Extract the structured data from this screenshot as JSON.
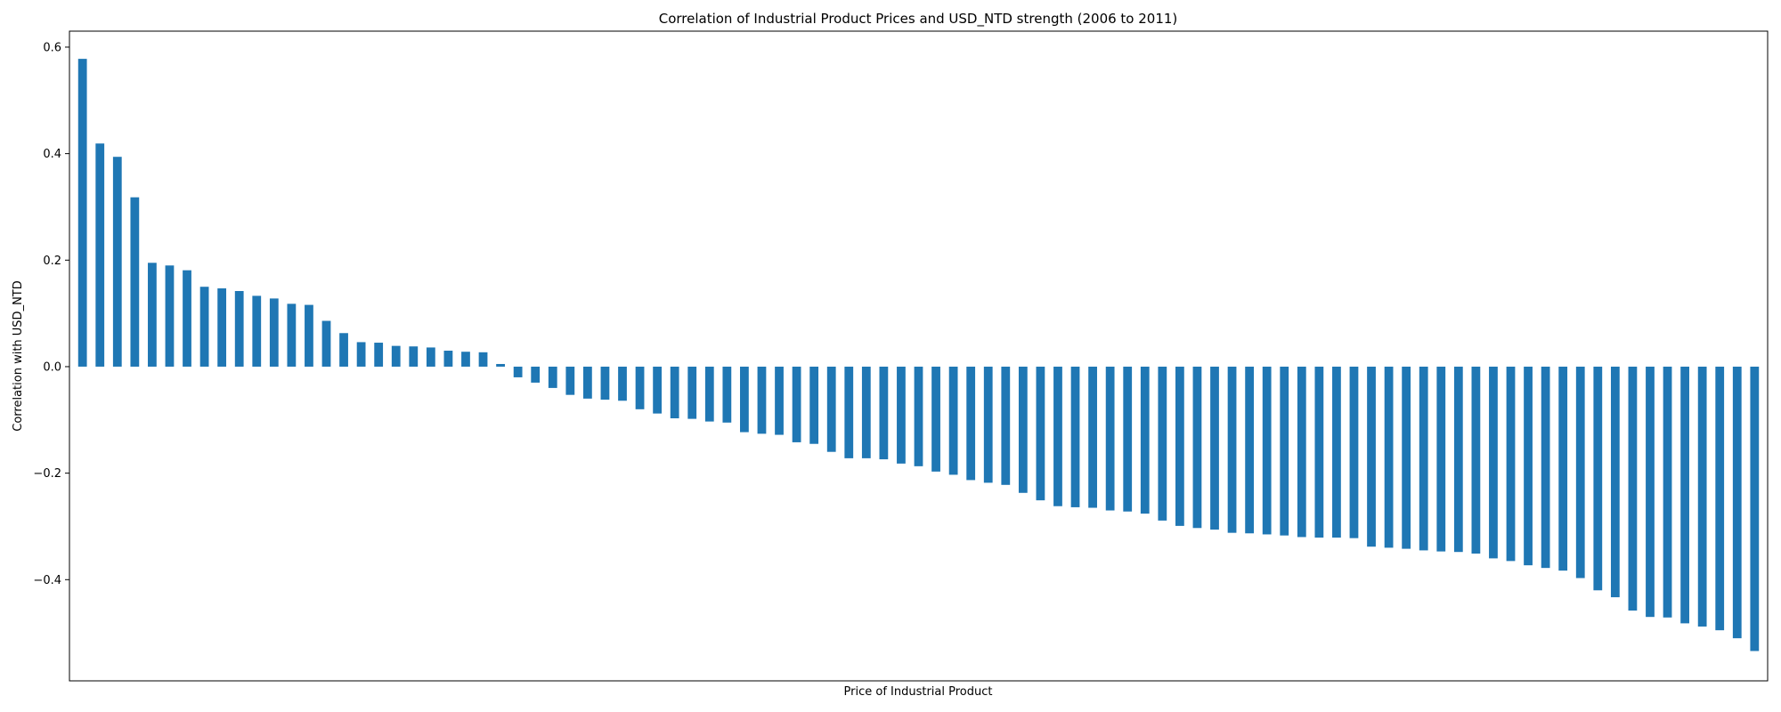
{
  "chart_data": {
    "type": "bar",
    "title": "Correlation of Industrial Product Prices and USD_NTD strength (2006 to 2011)",
    "xlabel": "Price of Industrial Product",
    "ylabel": "Correlation with USD_NTD",
    "ylim": [
      -0.59,
      0.63
    ],
    "yticks": [
      {
        "value": 0.6,
        "label": "0.6"
      },
      {
        "value": 0.4,
        "label": "0.4"
      },
      {
        "value": 0.2,
        "label": "0.2"
      },
      {
        "value": 0.0,
        "label": "0.0"
      },
      {
        "value": -0.2,
        "label": "−0.2"
      },
      {
        "value": -0.4,
        "label": "−0.4"
      }
    ],
    "grid": false,
    "color": "#1f77b4",
    "values": [
      0.578,
      0.419,
      0.394,
      0.318,
      0.195,
      0.19,
      0.181,
      0.15,
      0.147,
      0.142,
      0.133,
      0.128,
      0.118,
      0.116,
      0.086,
      0.063,
      0.046,
      0.045,
      0.039,
      0.038,
      0.036,
      0.03,
      0.028,
      0.027,
      0.005,
      -0.02,
      -0.03,
      -0.04,
      -0.053,
      -0.06,
      -0.062,
      -0.064,
      -0.08,
      -0.088,
      -0.097,
      -0.098,
      -0.103,
      -0.105,
      -0.123,
      -0.126,
      -0.128,
      -0.142,
      -0.145,
      -0.16,
      -0.172,
      -0.172,
      -0.174,
      -0.182,
      -0.187,
      -0.197,
      -0.203,
      -0.213,
      -0.218,
      -0.222,
      -0.237,
      -0.251,
      -0.262,
      -0.264,
      -0.265,
      -0.27,
      -0.272,
      -0.276,
      -0.289,
      -0.299,
      -0.303,
      -0.306,
      -0.312,
      -0.313,
      -0.315,
      -0.317,
      -0.32,
      -0.321,
      -0.321,
      -0.322,
      -0.338,
      -0.34,
      -0.342,
      -0.345,
      -0.347,
      -0.348,
      -0.351,
      -0.36,
      -0.365,
      -0.373,
      -0.378,
      -0.383,
      -0.397,
      -0.42,
      -0.433,
      -0.458,
      -0.47,
      -0.471,
      -0.482,
      -0.488,
      -0.495,
      -0.51,
      -0.534
    ]
  }
}
